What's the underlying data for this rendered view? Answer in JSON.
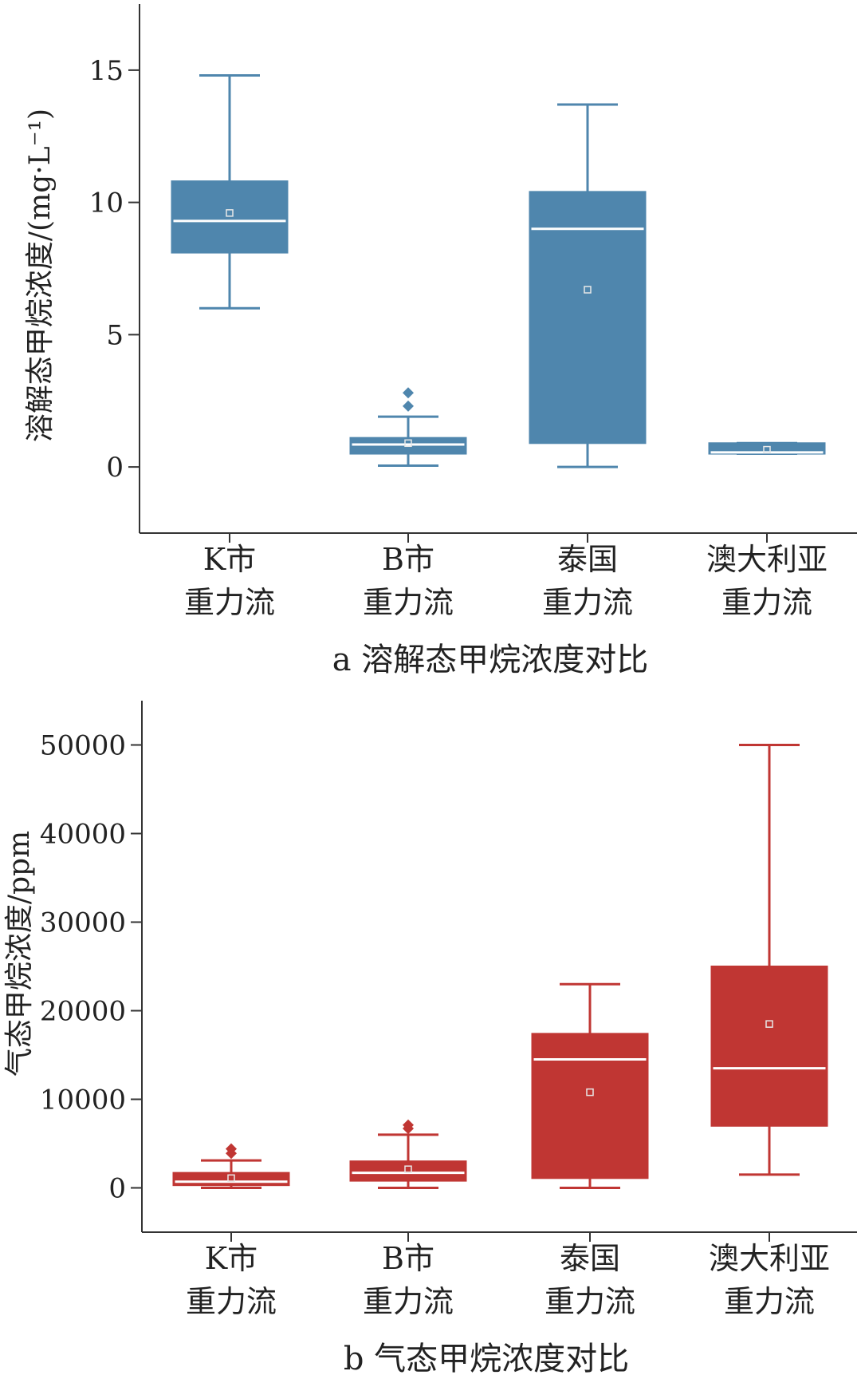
{
  "chart_data": [
    {
      "type": "box",
      "caption": "a 溶解态甲烷浓度对比",
      "ylabel": "溶解态甲烷浓度/(mg·L⁻¹)",
      "xlabel": "",
      "ylim": [
        -2.5,
        17.5
      ],
      "yticks": [
        0,
        5,
        10,
        15
      ],
      "grid": false,
      "color": "#4f86ad",
      "categories": [
        {
          "line1": "K市",
          "line2": "重力流"
        },
        {
          "line1": "B市",
          "line2": "重力流"
        },
        {
          "line1": "泰国",
          "line2": "重力流"
        },
        {
          "line1": "澳大利亚",
          "line2": "重力流"
        }
      ],
      "boxes": [
        {
          "min": 6.0,
          "q1": 8.1,
          "median": 9.3,
          "q3": 10.8,
          "max": 14.8,
          "mean": 9.6,
          "outliers": []
        },
        {
          "min": 0.05,
          "q1": 0.5,
          "median": 0.85,
          "q3": 1.1,
          "max": 1.9,
          "mean": 0.9,
          "outliers": [
            2.3,
            2.8
          ]
        },
        {
          "min": 0.0,
          "q1": 0.9,
          "median": 9.0,
          "q3": 10.4,
          "max": 13.7,
          "mean": 6.7,
          "outliers": []
        },
        {
          "min": 0.5,
          "q1": 0.5,
          "median": 0.55,
          "q3": 0.9,
          "max": 0.9,
          "mean": 0.65,
          "outliers": []
        }
      ]
    },
    {
      "type": "box",
      "caption": "b 气态甲烷浓度对比",
      "ylabel": "气态甲烷浓度/ppm",
      "xlabel": "",
      "ylim": [
        -5000,
        55000
      ],
      "yticks": [
        0,
        10000,
        20000,
        30000,
        40000,
        50000
      ],
      "grid": false,
      "color": "#c03633",
      "categories": [
        {
          "line1": "K市",
          "line2": "重力流"
        },
        {
          "line1": "B市",
          "line2": "重力流"
        },
        {
          "line1": "泰国",
          "line2": "重力流"
        },
        {
          "line1": "澳大利亚",
          "line2": "重力流"
        }
      ],
      "boxes": [
        {
          "min": 0,
          "q1": 300,
          "median": 700,
          "q3": 1700,
          "max": 3100,
          "mean": 1100,
          "outliers": [
            3900,
            4400
          ]
        },
        {
          "min": 0,
          "q1": 800,
          "median": 1700,
          "q3": 3000,
          "max": 6000,
          "mean": 2100,
          "outliers": [
            6700,
            7100
          ]
        },
        {
          "min": 0,
          "q1": 1100,
          "median": 14500,
          "q3": 17400,
          "max": 23000,
          "mean": 10800,
          "outliers": []
        },
        {
          "min": 1500,
          "q1": 7000,
          "median": 13500,
          "q3": 25000,
          "max": 50000,
          "mean": 18500,
          "outliers": []
        }
      ]
    }
  ]
}
